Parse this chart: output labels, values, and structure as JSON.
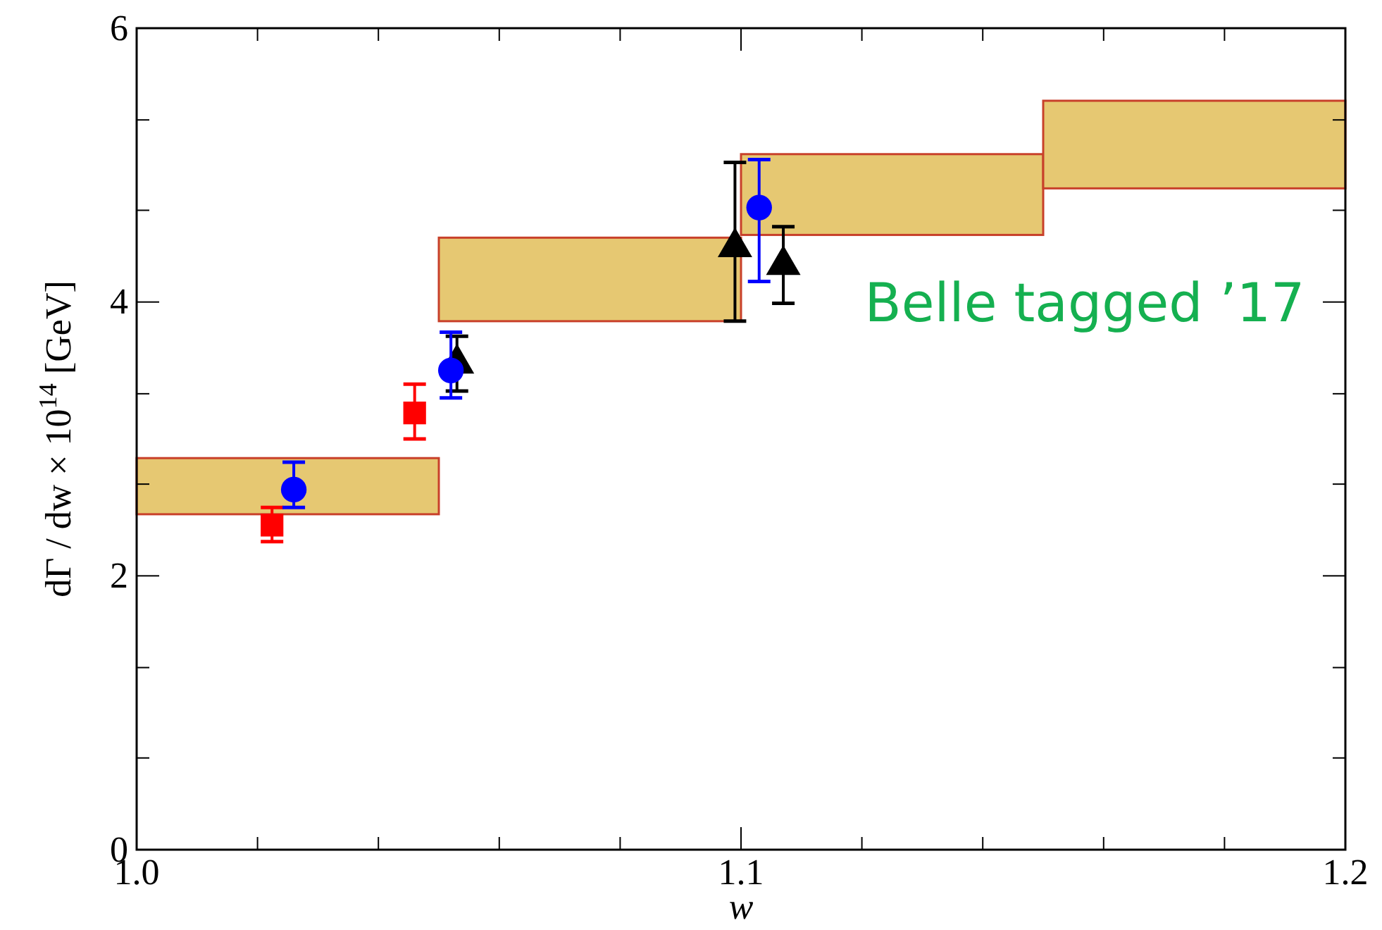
{
  "chart_data": {
    "type": "scatter",
    "xlabel": "w",
    "ylabel": "dΓ / dw × 10$^{14}$  [GeV]",
    "annotations": [
      "Belle tagged ’17"
    ],
    "xlim": [
      1.0,
      1.2
    ],
    "ylim": [
      0,
      6
    ],
    "xticks": [
      {
        "value": 1.0,
        "label": "1.0"
      },
      {
        "value": 1.02,
        "label": null
      },
      {
        "value": 1.04,
        "label": null
      },
      {
        "value": 1.06,
        "label": null
      },
      {
        "value": 1.08,
        "label": null
      },
      {
        "value": 1.1,
        "label": "1.1"
      },
      {
        "value": 1.12,
        "label": null
      },
      {
        "value": 1.14,
        "label": null
      },
      {
        "value": 1.16,
        "label": null
      },
      {
        "value": 1.18,
        "label": null
      },
      {
        "value": 1.2,
        "label": "1.2"
      }
    ],
    "yticks": [
      0,
      {
        "value": 0.67,
        "label": null
      },
      {
        "value": 1.33,
        "label": null
      },
      2,
      {
        "value": 2.67,
        "label": null
      },
      {
        "value": 3.33,
        "label": null
      },
      4,
      {
        "value": 4.67,
        "label": null
      },
      {
        "value": 5.33,
        "label": null
      },
      6
    ],
    "grid": false,
    "series": [
      {
        "type": "bar",
        "color": "#e6c872",
        "x": [
          1.025,
          1.075,
          1.125,
          1.175
        ],
        "base": [
          2.45,
          3.86,
          4.49,
          4.83
        ],
        "values": [
          0.41,
          0.61,
          0.59,
          0.64
        ]
      },
      {
        "marker": "square",
        "color": "#ff0000",
        "x": [
          1.0224,
          1.046
        ],
        "values": [
          2.37,
          3.19
        ],
        "errors": [
          [
            2.25,
            2.5
          ],
          [
            3.0,
            3.4
          ]
        ]
      },
      {
        "marker": "triangle",
        "color": "#000000",
        "x": [
          1.053,
          1.099,
          1.107
        ],
        "values": [
          3.55,
          4.4,
          4.27
        ],
        "errors": [
          [
            3.35,
            3.75
          ],
          [
            3.86,
            5.02
          ],
          [
            3.99,
            4.55
          ]
        ]
      },
      {
        "marker": "circle",
        "color": "#0000ff",
        "x": [
          1.026,
          1.052,
          1.103
        ],
        "values": [
          2.63,
          3.5,
          4.69
        ],
        "errors": [
          [
            2.5,
            2.83
          ],
          [
            3.3,
            3.78
          ],
          [
            4.15,
            5.04
          ]
        ]
      }
    ]
  }
}
